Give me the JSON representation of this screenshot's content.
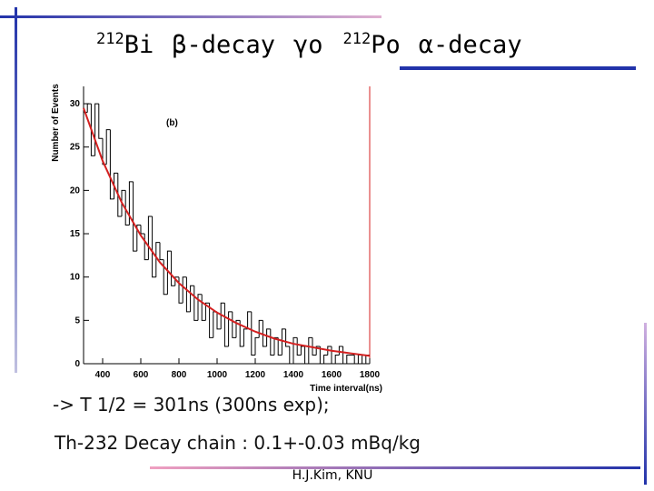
{
  "slide": {
    "title": [
      {
        "sup": "212",
        "text": "Bi"
      },
      {
        "text": "β-decay"
      },
      {
        "text": "γo"
      },
      {
        "sup": "212",
        "text": "Po"
      },
      {
        "text": "α-decay"
      }
    ],
    "lines": [
      "-> T 1/2 = 301ns (300ns exp);",
      "Th-232 Decay chain : 0.1+-0.03 mBq/kg"
    ],
    "footer": "H.J.Kim, KNU"
  },
  "chart_data": {
    "type": "histogram",
    "annotation": "(b)",
    "x_label": "Time interval(ns)",
    "y_label": "Number of Events",
    "color": "#000000",
    "bins": [
      300,
      320,
      340,
      360,
      380,
      400,
      420,
      440,
      460,
      480,
      500,
      520,
      540,
      560,
      580,
      600,
      620,
      640,
      660,
      680,
      700,
      720,
      740,
      760,
      780,
      800,
      820,
      840,
      860,
      880,
      900,
      920,
      940,
      960,
      980,
      1000,
      1020,
      1040,
      1060,
      1080,
      1100,
      1120,
      1140,
      1160,
      1180,
      1200,
      1220,
      1240,
      1260,
      1280,
      1300,
      1320,
      1340,
      1360,
      1380,
      1400,
      1420,
      1440,
      1460,
      1480,
      1500,
      1520,
      1540,
      1560,
      1580,
      1600,
      1620,
      1640,
      1660,
      1680,
      1700,
      1720,
      1740,
      1760,
      1780,
      1800
    ],
    "counts": [
      29,
      30,
      24,
      30,
      26,
      23,
      27,
      19,
      22,
      17,
      20,
      16,
      21,
      13,
      16,
      15,
      12,
      17,
      10,
      14,
      12,
      8,
      13,
      9,
      10,
      7,
      10,
      6,
      9,
      5,
      8,
      5,
      7,
      3,
      6,
      4,
      7,
      2,
      6,
      3,
      5,
      2,
      4,
      6,
      1,
      3,
      5,
      2,
      4,
      1,
      3,
      1,
      4,
      2,
      0,
      3,
      1,
      2,
      0,
      3,
      1,
      2,
      0,
      1,
      2,
      0,
      1,
      2,
      0,
      1,
      1,
      0,
      1,
      0,
      1
    ],
    "fit": {
      "color": "#d42020",
      "x": [
        300,
        400,
        500,
        600,
        700,
        800,
        900,
        1000,
        1100,
        1200,
        1300,
        1400,
        1500,
        1600,
        1700,
        1800
      ],
      "values": [
        29.5,
        23.4,
        18.6,
        14.8,
        11.7,
        9.3,
        7.4,
        5.9,
        4.7,
        3.7,
        2.9,
        2.3,
        1.9,
        1.5,
        1.2,
        0.9
      ]
    },
    "xlim": [
      300,
      1800
    ],
    "xticks": [
      400,
      600,
      800,
      1000,
      1200,
      1400,
      1600,
      1800
    ],
    "ylim": [
      0,
      32
    ],
    "yticks": [
      0,
      5,
      10,
      15,
      20,
      25,
      30
    ]
  }
}
